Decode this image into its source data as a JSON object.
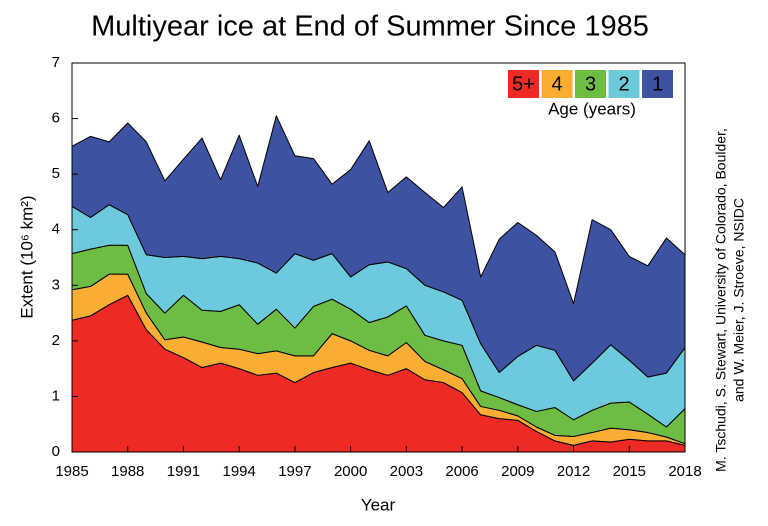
{
  "chart_data": {
    "type": "stacked_area",
    "title": "Multiyear ice at End of Summer Since 1985",
    "x_label": "Year",
    "y_label": "Extent (10⁶ km²)",
    "legend_title": "Age (years)",
    "legend": "top-right",
    "credit": [
      "M. Tschudi, S. Stewart, University of Colorado, Boulder,",
      "and W. Meier, J. Stroeve, NSIDC"
    ],
    "x": [
      1985,
      1986,
      1987,
      1988,
      1989,
      1990,
      1991,
      1992,
      1993,
      1994,
      1995,
      1996,
      1997,
      1998,
      1999,
      2000,
      2001,
      2002,
      2003,
      2004,
      2005,
      2006,
      2007,
      2008,
      2009,
      2010,
      2011,
      2012,
      2013,
      2014,
      2015,
      2016,
      2017,
      2018
    ],
    "xlim": [
      1985,
      2018
    ],
    "xticks": [
      1985,
      1988,
      1991,
      1994,
      1997,
      2000,
      2003,
      2006,
      2009,
      2012,
      2015,
      2018
    ],
    "ylim": [
      0,
      7
    ],
    "yticks": [
      0,
      1,
      2,
      3,
      4,
      5,
      6,
      7
    ],
    "series": [
      {
        "name": "5+",
        "color": "#ee2a24",
        "values": [
          2.37,
          2.45,
          2.65,
          2.82,
          2.2,
          1.85,
          1.7,
          1.52,
          1.6,
          1.5,
          1.38,
          1.42,
          1.25,
          1.43,
          1.52,
          1.6,
          1.48,
          1.38,
          1.5,
          1.3,
          1.25,
          1.07,
          0.67,
          0.6,
          0.57,
          0.37,
          0.2,
          0.12,
          0.2,
          0.18,
          0.23,
          0.2,
          0.2,
          0.12
        ]
      },
      {
        "name": "4",
        "color": "#f9ae33",
        "values": [
          0.55,
          0.53,
          0.55,
          0.38,
          0.3,
          0.17,
          0.37,
          0.46,
          0.28,
          0.35,
          0.39,
          0.4,
          0.48,
          0.3,
          0.61,
          0.4,
          0.35,
          0.35,
          0.47,
          0.33,
          0.23,
          0.25,
          0.15,
          0.15,
          0.08,
          0.08,
          0.1,
          0.16,
          0.15,
          0.25,
          0.17,
          0.15,
          0.07,
          0.03
        ]
      },
      {
        "name": "3",
        "color": "#6dbd45",
        "values": [
          0.65,
          0.67,
          0.52,
          0.52,
          0.35,
          0.48,
          0.75,
          0.57,
          0.65,
          0.8,
          0.53,
          0.75,
          0.5,
          0.89,
          0.62,
          0.57,
          0.5,
          0.7,
          0.66,
          0.47,
          0.52,
          0.6,
          0.28,
          0.23,
          0.2,
          0.28,
          0.5,
          0.3,
          0.4,
          0.45,
          0.5,
          0.33,
          0.18,
          0.63
        ]
      },
      {
        "name": "2",
        "color": "#6dcadc",
        "values": [
          0.85,
          0.57,
          0.73,
          0.55,
          0.7,
          1.0,
          0.7,
          0.93,
          0.99,
          0.83,
          1.1,
          0.65,
          1.34,
          0.83,
          0.82,
          0.58,
          1.04,
          0.99,
          0.67,
          0.9,
          0.88,
          0.81,
          0.85,
          0.45,
          0.87,
          1.19,
          1.03,
          0.7,
          0.85,
          1.05,
          0.75,
          0.67,
          0.97,
          1.1
        ]
      },
      {
        "name": "1",
        "color": "#3d52a1",
        "values": [
          1.08,
          1.46,
          1.13,
          1.65,
          2.03,
          1.38,
          1.75,
          2.17,
          1.38,
          2.22,
          1.38,
          2.83,
          1.76,
          1.83,
          1.25,
          1.93,
          2.23,
          1.25,
          1.65,
          1.67,
          1.52,
          2.04,
          1.2,
          2.4,
          2.41,
          1.98,
          1.77,
          1.39,
          2.58,
          2.07,
          1.87,
          2.0,
          2.43,
          1.67
        ]
      }
    ]
  }
}
